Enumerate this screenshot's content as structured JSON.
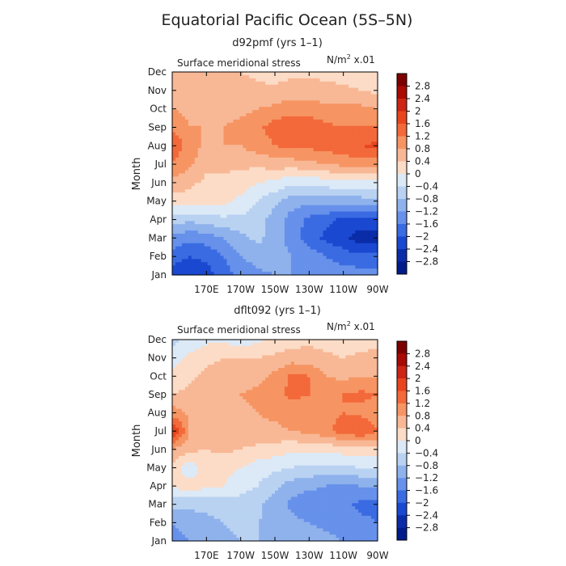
{
  "figure": {
    "title": "Equatorial Pacific Ocean (5S–5N)"
  },
  "colorbar": {
    "labels": [
      "2.8",
      "2.4",
      "2",
      "1.6",
      "1.2",
      "0.8",
      "0.4",
      "0",
      "−0.4",
      "−0.8",
      "−1.2",
      "−1.6",
      "−2",
      "−2.4",
      "−2.8"
    ],
    "colors": [
      "#7d0000",
      "#a80a05",
      "#cc2515",
      "#e8451f",
      "#f3693a",
      "#f69563",
      "#f8b896",
      "#fcdcc6",
      "#dce9f7",
      "#b9d2f2",
      "#8fb2ec",
      "#6791ea",
      "#3a6be2",
      "#1a48d0",
      "#0a2ca8",
      "#001c8a"
    ]
  },
  "chart_data": [
    {
      "type": "heatmap",
      "title": "d92pmf (yrs 1–1)",
      "subtitle": "Surface meridional stress",
      "units_label": "N/m",
      "units_sup": "2",
      "units_suffix": " x.01",
      "ylabel": "Month",
      "xlabel": "",
      "xticks": [
        "170E",
        "170W",
        "150W",
        "130W",
        "110W",
        "90W"
      ],
      "xtick_lon": [
        170,
        190,
        210,
        230,
        250,
        270
      ],
      "xlim_lon": [
        150,
        270
      ],
      "yticks": [
        "Jan",
        "Feb",
        "Mar",
        "Apr",
        "May",
        "Jun",
        "Jul",
        "Aug",
        "Sep",
        "Oct",
        "Nov",
        "Dec"
      ],
      "levels": [
        -2.8,
        -2.4,
        -2.0,
        -1.6,
        -1.2,
        -0.8,
        -0.4,
        0,
        0.4,
        0.8,
        1.2,
        1.6,
        2.0,
        2.4,
        2.8
      ],
      "lon": [
        150,
        160,
        170,
        180,
        190,
        200,
        210,
        220,
        230,
        240,
        250,
        260,
        270
      ],
      "values": [
        [
          -2.2,
          -2.4,
          -2.2,
          -1.8,
          -1.5,
          -1.3,
          -1.2,
          -1.2,
          -1.2,
          -1.3,
          -1.4,
          -1.4,
          -1.4
        ],
        [
          -1.8,
          -2.0,
          -1.9,
          -1.6,
          -1.2,
          -1.0,
          -1.0,
          -1.2,
          -1.4,
          -1.6,
          -1.8,
          -1.9,
          -1.9
        ],
        [
          -1.3,
          -1.5,
          -1.4,
          -1.2,
          -0.9,
          -0.7,
          -1.0,
          -1.4,
          -1.8,
          -2.1,
          -2.3,
          -2.6,
          -2.6
        ],
        [
          -0.6,
          -0.7,
          -0.6,
          -0.5,
          -0.5,
          -0.6,
          -1.0,
          -1.4,
          -1.7,
          -1.9,
          -2.1,
          -2.2,
          -2.1
        ],
        [
          0.2,
          0.2,
          0.2,
          0.1,
          -0.1,
          -0.4,
          -0.7,
          -1.0,
          -1.1,
          -1.0,
          -1.0,
          -1.0,
          -0.9
        ],
        [
          0.7,
          0.5,
          0.3,
          0.3,
          0.2,
          0.0,
          -0.1,
          -0.3,
          -0.3,
          -0.2,
          -0.1,
          -0.1,
          -0.1
        ],
        [
          1.1,
          0.9,
          0.5,
          0.5,
          0.5,
          0.5,
          0.6,
          0.6,
          0.7,
          0.8,
          0.9,
          1.0,
          1.0
        ],
        [
          1.6,
          1.0,
          0.7,
          0.8,
          0.8,
          1.0,
          1.2,
          1.3,
          1.3,
          1.4,
          1.5,
          1.6,
          1.7
        ],
        [
          1.1,
          0.8,
          0.8,
          0.8,
          0.9,
          1.1,
          1.4,
          1.6,
          1.5,
          1.3,
          1.2,
          1.2,
          1.2
        ],
        [
          0.8,
          0.7,
          0.7,
          0.7,
          0.7,
          0.8,
          0.9,
          1.0,
          1.0,
          0.9,
          0.9,
          0.9,
          0.8
        ],
        [
          0.6,
          0.6,
          0.6,
          0.6,
          0.6,
          0.5,
          0.5,
          0.6,
          0.6,
          0.5,
          0.5,
          0.4,
          0.3
        ],
        [
          0.4,
          0.4,
          0.5,
          0.5,
          0.4,
          0.3,
          0.2,
          0.3,
          0.3,
          0.3,
          0.2,
          0.1,
          0.1
        ]
      ]
    },
    {
      "type": "heatmap",
      "title": "dflt092 (yrs 1–1)",
      "subtitle": "Surface meridional stress",
      "units_label": "N/m",
      "units_sup": "2",
      "units_suffix": " x.01",
      "ylabel": "Month",
      "xlabel": "",
      "xticks": [
        "170E",
        "170W",
        "150W",
        "130W",
        "110W",
        "90W"
      ],
      "xtick_lon": [
        170,
        190,
        210,
        230,
        250,
        270
      ],
      "xlim_lon": [
        150,
        270
      ],
      "yticks": [
        "Jan",
        "Feb",
        "Mar",
        "Apr",
        "May",
        "Jun",
        "Jul",
        "Aug",
        "Sep",
        "Oct",
        "Nov",
        "Dec"
      ],
      "levels": [
        -2.8,
        -2.4,
        -2.0,
        -1.6,
        -1.2,
        -0.8,
        -0.4,
        0,
        0.4,
        0.8,
        1.2,
        1.6,
        2.0,
        2.4,
        2.8
      ],
      "lon": [
        150,
        160,
        170,
        180,
        190,
        200,
        210,
        220,
        230,
        240,
        250,
        260,
        270
      ],
      "values": [
        [
          -1.4,
          -1.2,
          -1.0,
          -0.9,
          -0.8,
          -0.8,
          -0.8,
          -0.9,
          -1.0,
          -1.1,
          -1.2,
          -1.3,
          -1.3
        ],
        [
          -1.2,
          -1.0,
          -0.9,
          -0.8,
          -0.7,
          -0.8,
          -0.9,
          -1.1,
          -1.2,
          -1.3,
          -1.4,
          -1.5,
          -1.6
        ],
        [
          -0.7,
          -0.7,
          -0.7,
          -0.6,
          -0.6,
          -0.7,
          -1.0,
          -1.3,
          -1.5,
          -1.4,
          -1.5,
          -1.7,
          -1.7
        ],
        [
          0.1,
          0.2,
          0.1,
          0.0,
          -0.2,
          -0.4,
          -0.7,
          -1.0,
          -1.1,
          -1.2,
          -1.3,
          -1.2,
          -1.1
        ],
        [
          0.3,
          -0.3,
          0.2,
          0.1,
          0.0,
          -0.2,
          -0.3,
          -0.4,
          -0.5,
          -0.5,
          -0.5,
          -0.4,
          -0.4
        ],
        [
          0.8,
          0.5,
          0.4,
          0.5,
          0.4,
          0.3,
          0.2,
          0.1,
          0.1,
          0.1,
          0.2,
          0.2,
          0.2
        ],
        [
          2.1,
          0.8,
          0.6,
          0.5,
          0.6,
          0.7,
          0.7,
          0.8,
          0.9,
          1.1,
          1.4,
          1.6,
          1.2
        ],
        [
          1.0,
          0.7,
          0.6,
          0.6,
          0.7,
          0.8,
          0.9,
          1.0,
          1.0,
          1.1,
          1.2,
          1.1,
          1.0
        ],
        [
          0.4,
          0.5,
          0.6,
          0.7,
          0.8,
          0.9,
          1.1,
          1.3,
          1.2,
          1.0,
          1.2,
          1.3,
          1.2
        ],
        [
          0.1,
          0.3,
          0.5,
          0.6,
          0.6,
          0.7,
          0.9,
          1.3,
          1.2,
          0.8,
          0.7,
          0.8,
          0.8
        ],
        [
          -0.2,
          0.1,
          0.3,
          0.4,
          0.4,
          0.4,
          0.5,
          0.6,
          0.6,
          0.5,
          0.4,
          0.5,
          0.5
        ],
        [
          -0.5,
          -0.3,
          -0.1,
          -0.1,
          -0.2,
          -0.1,
          0.1,
          0.2,
          0.3,
          0.2,
          0.1,
          0.2,
          0.3
        ]
      ]
    }
  ]
}
